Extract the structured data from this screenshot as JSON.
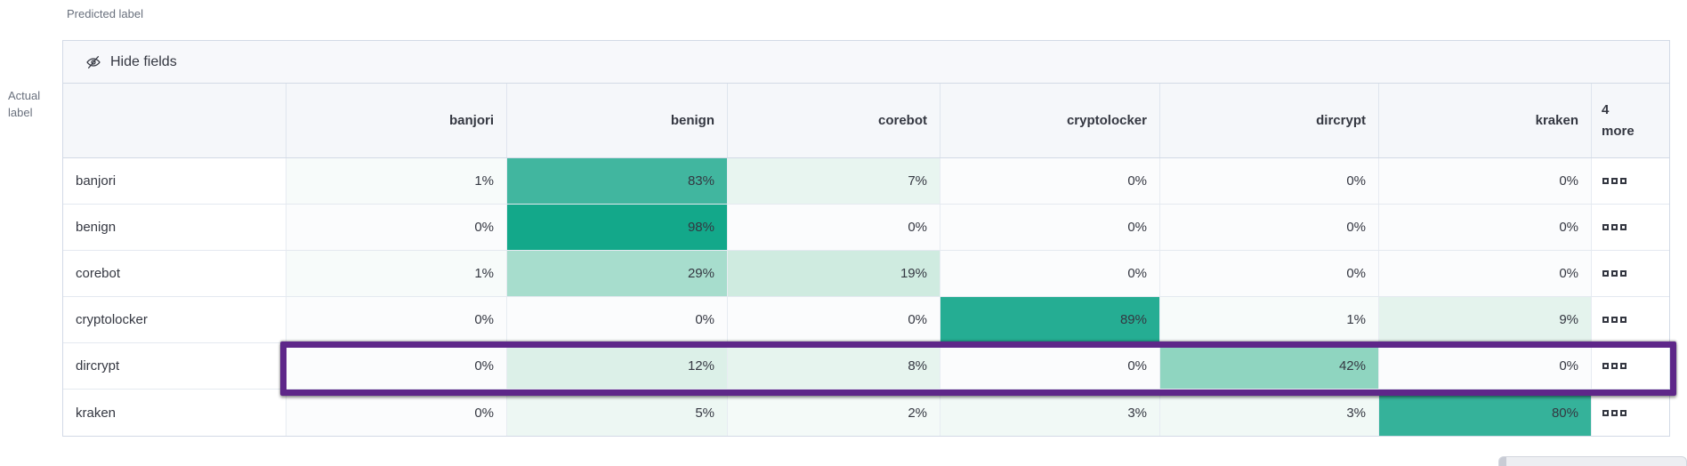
{
  "axes": {
    "predicted": "Predicted label",
    "actual_line1": "Actual",
    "actual_line2": "label"
  },
  "toolbar": {
    "hide_fields": "Hide fields",
    "icon": "eye-closed-icon"
  },
  "more_column": {
    "count": "4",
    "word": "more",
    "cell_icon": "boxes-horizontal-icon"
  },
  "chart_data": {
    "type": "heatmap",
    "x_label": "Predicted label",
    "y_label": "Actual label",
    "unit": "%",
    "columns": [
      "banjori",
      "benign",
      "corebot",
      "cryptolocker",
      "dircrypt",
      "kraken"
    ],
    "extra_columns_label": "4 more",
    "rows": [
      {
        "label": "banjori",
        "values": [
          1,
          83,
          7,
          0,
          0,
          0
        ],
        "highlighted": false
      },
      {
        "label": "benign",
        "values": [
          0,
          98,
          0,
          0,
          0,
          0
        ],
        "highlighted": false
      },
      {
        "label": "corebot",
        "values": [
          1,
          29,
          19,
          0,
          0,
          0
        ],
        "highlighted": false
      },
      {
        "label": "cryptolocker",
        "values": [
          0,
          0,
          0,
          89,
          1,
          9
        ],
        "highlighted": false
      },
      {
        "label": "dircrypt",
        "values": [
          0,
          12,
          8,
          0,
          42,
          0
        ],
        "highlighted": true
      },
      {
        "label": "kraken",
        "values": [
          0,
          5,
          2,
          3,
          3,
          80
        ],
        "highlighted": false
      }
    ]
  },
  "colors": {
    "text": "#343741",
    "muted_text": "#69707D",
    "table_border": "#D3DAE6",
    "header_bg": "#F5F7FA",
    "toolbar_bg": "#F7F8FB",
    "highlight_border": "#5E2789",
    "heatmap_cell_bg": {
      "0": "#FBFCFD",
      "1": "#F7FBFA",
      "2": "#F4FAF8",
      "3": "#F1F9F6",
      "5": "#EDF7F3",
      "7": "#E8F5F0",
      "8": "#E6F4EE",
      "9": "#E4F3ED",
      "12": "#DCF0E8",
      "19": "#CFEBE0",
      "29": "#A7DDCD",
      "42": "#8FD5C0",
      "80": "#35B29A",
      "83": "#41B69F",
      "89": "#25AD93",
      "98": "#13A88A"
    }
  }
}
